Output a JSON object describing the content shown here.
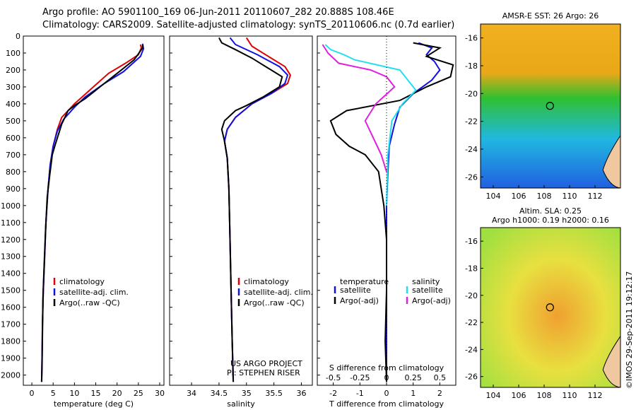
{
  "title_line1": "Argo profile: AO 5901100_169 06-Jun-2011 20110607_282 20.888S 108.46E",
  "title_line2": "Climatology: CARS2009. Satellite-adjusted climatology: synTS_20110606.nc (0.7d earlier)",
  "colors": {
    "clim": "#e00000",
    "sat": "#1010e0",
    "argo": "#000000",
    "sat_s": "#20e0f0",
    "argo_s": "#e020e0"
  },
  "depth_ticks": [
    0,
    100,
    200,
    300,
    400,
    500,
    600,
    700,
    800,
    900,
    1000,
    1100,
    1200,
    1300,
    1400,
    1500,
    1600,
    1700,
    1800,
    1900,
    2000
  ],
  "chart_data": [
    {
      "type": "line",
      "id": "temperature",
      "xlabel": "temperature (deg C)",
      "xlim": [
        -2,
        31
      ],
      "ylim": [
        0,
        2060
      ],
      "xticks": [
        0,
        5,
        10,
        15,
        20,
        25,
        30
      ],
      "legend": [
        "climatology",
        "satellite-adj. clim.",
        "Argo(..raw -QC)"
      ],
      "series": [
        {
          "name": "climatology",
          "color": "clim",
          "points": [
            [
              25.5,
              50
            ],
            [
              25.7,
              70
            ],
            [
              25,
              110
            ],
            [
              22,
              160
            ],
            [
              18,
              220
            ],
            [
              14,
              310
            ],
            [
              10,
              400
            ],
            [
              7,
              480
            ],
            [
              6,
              550
            ],
            [
              5,
              650
            ],
            [
              4.3,
              760
            ],
            [
              3.8,
              900
            ],
            [
              3.3,
              1100
            ],
            [
              3,
              1300
            ],
            [
              2.7,
              1500
            ],
            [
              2.5,
              1700
            ],
            [
              2.4,
              1900
            ],
            [
              2.3,
              2040
            ]
          ]
        },
        {
          "name": "satellite-adj. clim.",
          "color": "sat",
          "points": [
            [
              26,
              45
            ],
            [
              26.2,
              75
            ],
            [
              25.5,
              120
            ],
            [
              21.5,
              210
            ],
            [
              17,
              280
            ],
            [
              12.5,
              360
            ],
            [
              10,
              420
            ],
            [
              7.5,
              490
            ],
            [
              6,
              560
            ],
            [
              5,
              650
            ],
            [
              4.3,
              760
            ],
            [
              3.8,
              900
            ],
            [
              3.3,
              1100
            ],
            [
              3,
              1300
            ],
            [
              2.7,
              1500
            ],
            [
              2.5,
              1700
            ],
            [
              2.4,
              1900
            ],
            [
              2.3,
              2040
            ]
          ]
        },
        {
          "name": "Argo(..raw -QC)",
          "color": "argo",
          "points": [
            [
              26,
              50
            ],
            [
              26,
              70
            ],
            [
              24,
              140
            ],
            [
              20,
              220
            ],
            [
              16,
              300
            ],
            [
              12.5,
              370
            ],
            [
              10,
              410
            ],
            [
              8.5,
              440
            ],
            [
              7,
              520
            ],
            [
              5.5,
              640
            ],
            [
              4.8,
              700
            ],
            [
              4.2,
              820
            ],
            [
              3.6,
              950
            ],
            [
              3.2,
              1150
            ],
            [
              2.9,
              1350
            ],
            [
              2.6,
              1550
            ],
            [
              2.5,
              1750
            ],
            [
              2.4,
              1950
            ],
            [
              2.3,
              2040
            ]
          ]
        }
      ]
    },
    {
      "type": "line",
      "id": "salinity",
      "xlabel": "salinity",
      "xlim": [
        33.6,
        36.2
      ],
      "ylim": [
        0,
        2060
      ],
      "xticks": [
        34,
        34.5,
        35,
        35.5,
        36
      ],
      "legend": [
        "climatology",
        "satellite-adj. clim.",
        "Argo(..raw -QC)"
      ],
      "annotation": [
        "US ARGO PROJECT",
        "PI: STEPHEN RISER"
      ],
      "series": [
        {
          "name": "climatology",
          "color": "clim",
          "points": [
            [
              35,
              10
            ],
            [
              35.1,
              60
            ],
            [
              35.4,
              120
            ],
            [
              35.7,
              180
            ],
            [
              35.8,
              230
            ],
            [
              35.75,
              280
            ],
            [
              35.5,
              330
            ],
            [
              35.1,
              400
            ],
            [
              34.8,
              480
            ],
            [
              34.65,
              550
            ],
            [
              34.6,
              620
            ],
            [
              34.65,
              720
            ],
            [
              34.68,
              900
            ],
            [
              34.7,
              1200
            ],
            [
              34.72,
              1500
            ],
            [
              34.74,
              1800
            ],
            [
              34.76,
              2040
            ]
          ]
        },
        {
          "name": "satellite-adj. clim.",
          "color": "sat",
          "points": [
            [
              34.7,
              10
            ],
            [
              34.8,
              50
            ],
            [
              35.2,
              110
            ],
            [
              35.6,
              180
            ],
            [
              35.75,
              230
            ],
            [
              35.7,
              280
            ],
            [
              35.45,
              340
            ],
            [
              35.1,
              400
            ],
            [
              34.8,
              480
            ],
            [
              34.65,
              550
            ],
            [
              34.6,
              620
            ],
            [
              34.65,
              720
            ],
            [
              34.68,
              900
            ],
            [
              34.7,
              1200
            ],
            [
              34.72,
              1500
            ],
            [
              34.74,
              1800
            ],
            [
              34.76,
              2040
            ]
          ]
        },
        {
          "name": "Argo(..raw -QC)",
          "color": "argo",
          "points": [
            [
              34.5,
              10
            ],
            [
              34.55,
              40
            ],
            [
              34.8,
              80
            ],
            [
              35.1,
              130
            ],
            [
              35.4,
              190
            ],
            [
              35.65,
              240
            ],
            [
              35.6,
              300
            ],
            [
              35.3,
              360
            ],
            [
              35,
              410
            ],
            [
              34.8,
              440
            ],
            [
              34.6,
              500
            ],
            [
              34.55,
              550
            ],
            [
              34.6,
              620
            ],
            [
              34.65,
              720
            ],
            [
              34.68,
              900
            ],
            [
              34.7,
              1200
            ],
            [
              34.72,
              1500
            ],
            [
              34.74,
              1800
            ],
            [
              34.76,
              2040
            ]
          ]
        }
      ]
    },
    {
      "type": "line",
      "id": "differences",
      "xlabel": "T difference from climatology",
      "xlabel_top": "S difference from climatology",
      "xlim": [
        -2.6,
        2.6
      ],
      "ylim": [
        0,
        2060
      ],
      "xticks": [
        -2,
        -1,
        0,
        1,
        2
      ],
      "xticks_top": [
        -0.5,
        -0.25,
        0,
        0.25,
        0.5
      ],
      "legend_t": [
        "temperature",
        "satellite",
        "Argo(-adj)"
      ],
      "legend_s": [
        "salinity",
        "satellite",
        "Argo(-adj)"
      ],
      "series": [
        {
          "name": "T satellite",
          "color": "sat",
          "points": [
            [
              1.2,
              40
            ],
            [
              1.7,
              70
            ],
            [
              1.5,
              110
            ],
            [
              1.8,
              150
            ],
            [
              2,
              200
            ],
            [
              1.7,
              260
            ],
            [
              1,
              340
            ],
            [
              0.5,
              420
            ],
            [
              0.3,
              520
            ],
            [
              0.1,
              650
            ],
            [
              0.05,
              800
            ],
            [
              0,
              1000
            ],
            [
              0,
              1500
            ],
            [
              0,
              2040
            ]
          ]
        },
        {
          "name": "T Argo(-adj)",
          "color": "argo",
          "points": [
            [
              1,
              40
            ],
            [
              2,
              70
            ],
            [
              1.5,
              120
            ],
            [
              2.5,
              170
            ],
            [
              2.4,
              240
            ],
            [
              1.5,
              300
            ],
            [
              0.5,
              380
            ],
            [
              -1.5,
              440
            ],
            [
              -2.1,
              500
            ],
            [
              -1.9,
              580
            ],
            [
              -1.4,
              650
            ],
            [
              -0.8,
              700
            ],
            [
              -0.3,
              800
            ],
            [
              -0.1,
              1000
            ],
            [
              0,
              1200
            ],
            [
              0,
              1500
            ],
            [
              -0.05,
              1800
            ],
            [
              0,
              2040
            ]
          ]
        },
        {
          "name": "S satellite",
          "color": "sat_s",
          "points": [
            [
              -2.3,
              50
            ],
            [
              -2.1,
              80
            ],
            [
              -1.6,
              110
            ],
            [
              -1.2,
              140
            ],
            [
              0.5,
              200
            ],
            [
              1.1,
              320
            ],
            [
              0.6,
              400
            ],
            [
              0.2,
              500
            ],
            [
              0.05,
              700
            ],
            [
              0,
              1000
            ]
          ]
        },
        {
          "name": "S Argo(-adj)",
          "color": "argo_s",
          "points": [
            [
              -2.4,
              50
            ],
            [
              -2.2,
              100
            ],
            [
              -1.8,
              160
            ],
            [
              -0.6,
              200
            ],
            [
              0,
              240
            ],
            [
              0.3,
              300
            ],
            [
              -0.4,
              400
            ],
            [
              -0.8,
              500
            ],
            [
              -0.5,
              600
            ],
            [
              -0.2,
              700
            ],
            [
              0,
              800
            ]
          ]
        }
      ]
    },
    {
      "type": "heatmap",
      "id": "sst_map",
      "title": "AMSR-E SST: 26 Argo: 26",
      "xlim": [
        103,
        114
      ],
      "ylim": [
        -26.8,
        -15
      ],
      "xticks": [
        104,
        106,
        108,
        110,
        112
      ],
      "yticks": [
        -16,
        -18,
        -20,
        -22,
        -24,
        -26
      ],
      "marker": [
        108.46,
        -20.888
      ]
    },
    {
      "type": "heatmap",
      "id": "sla_map",
      "title": "Altim. SLA: 0.25",
      "subtitle": "Argo h1000: 0.19 h2000: 0.16",
      "xlim": [
        103,
        114
      ],
      "ylim": [
        -26.8,
        -15
      ],
      "xticks": [
        104,
        106,
        108,
        110,
        112
      ],
      "yticks": [
        -16,
        -18,
        -20,
        -22,
        -24,
        -26
      ],
      "marker": [
        108.46,
        -20.888
      ]
    }
  ],
  "credit": "©IMOS 29-Sep-2011 19:12:17"
}
